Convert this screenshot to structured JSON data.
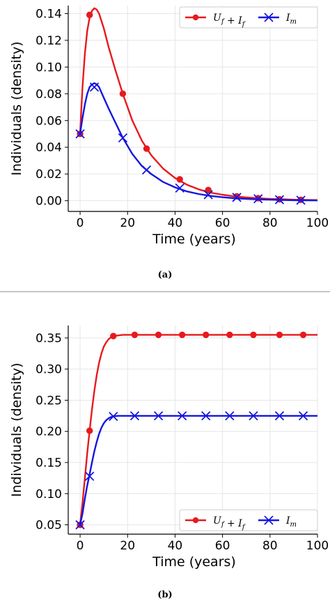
{
  "chart_data": [
    {
      "type": "line",
      "panel_label": "(a)",
      "xlabel": "Time (years)",
      "ylabel": "Individuals (density)",
      "xlim": [
        -5,
        100
      ],
      "ylim": [
        -0.008,
        0.146
      ],
      "xticks": [
        0,
        20,
        40,
        60,
        80,
        100
      ],
      "xtick_labels": [
        "0",
        "20",
        "40",
        "60",
        "80",
        "100"
      ],
      "yticks": [
        0.0,
        0.02,
        0.04,
        0.06,
        0.08,
        0.1,
        0.12,
        0.14
      ],
      "ytick_labels": [
        "0.00",
        "0.02",
        "0.04",
        "0.06",
        "0.08",
        "0.10",
        "0.12",
        "0.14"
      ],
      "grid": true,
      "legend_position": "top-right",
      "series": [
        {
          "name": "U_f + I_f",
          "color": "#e8191c",
          "marker": "circle",
          "x": [
            0,
            1,
            2,
            3,
            4,
            5,
            6,
            7,
            8,
            10,
            12,
            15,
            18,
            22,
            26,
            30,
            35,
            40,
            45,
            50,
            55,
            60,
            65,
            70,
            75,
            80,
            85,
            90,
            95,
            100
          ],
          "values": [
            0.05,
            0.085,
            0.11,
            0.127,
            0.137,
            0.142,
            0.144,
            0.143,
            0.14,
            0.129,
            0.115,
            0.097,
            0.08,
            0.06,
            0.045,
            0.034,
            0.024,
            0.017,
            0.012,
            0.0085,
            0.006,
            0.0045,
            0.0033,
            0.0025,
            0.0019,
            0.0014,
            0.0011,
            0.0008,
            0.0006,
            0.0005
          ],
          "marker_x": [
            0,
            4,
            18,
            28,
            42,
            54,
            66,
            75,
            84,
            93
          ],
          "marker_values": [
            0.05,
            0.139,
            0.08,
            0.039,
            0.016,
            0.008,
            0.0033,
            0.0019,
            0.0011,
            0.0007
          ]
        },
        {
          "name": "I_m",
          "color": "#1416e0",
          "marker": "x",
          "x": [
            0,
            1,
            2,
            3,
            4,
            5,
            6,
            7,
            8,
            10,
            12,
            15,
            18,
            22,
            26,
            30,
            35,
            40,
            45,
            50,
            55,
            60,
            65,
            70,
            75,
            80,
            85,
            90,
            95,
            100
          ],
          "values": [
            0.05,
            0.062,
            0.072,
            0.08,
            0.085,
            0.087,
            0.088,
            0.087,
            0.085,
            0.077,
            0.069,
            0.058,
            0.047,
            0.035,
            0.026,
            0.02,
            0.014,
            0.01,
            0.007,
            0.005,
            0.0036,
            0.0026,
            0.0019,
            0.0014,
            0.001,
            0.0008,
            0.0006,
            0.0004,
            0.0003,
            0.0002
          ],
          "marker_x": [
            0,
            6,
            18,
            28,
            42,
            54,
            66,
            75,
            84,
            93
          ],
          "marker_values": [
            0.05,
            0.085,
            0.047,
            0.023,
            0.0095,
            0.0045,
            0.0025,
            0.0015,
            0.0008,
            0.0004
          ]
        }
      ]
    },
    {
      "type": "line",
      "panel_label": "(b)",
      "xlabel": "Time (years)",
      "ylabel": "Individuals (density)",
      "xlim": [
        -5,
        100
      ],
      "ylim": [
        0.035,
        0.37
      ],
      "xticks": [
        0,
        20,
        40,
        60,
        80,
        100
      ],
      "xtick_labels": [
        "0",
        "20",
        "40",
        "60",
        "80",
        "100"
      ],
      "yticks": [
        0.05,
        0.1,
        0.15,
        0.2,
        0.25,
        0.3,
        0.35
      ],
      "ytick_labels": [
        "0.05",
        "0.10",
        "0.15",
        "0.20",
        "0.25",
        "0.30",
        "0.35"
      ],
      "grid": true,
      "legend_position": "lower-right",
      "series": [
        {
          "name": "U_f + I_f",
          "color": "#e8191c",
          "marker": "circle",
          "x": [
            0,
            1,
            2,
            3,
            4,
            5,
            6,
            7,
            8,
            9,
            10,
            11,
            12,
            13,
            14,
            16,
            18,
            20,
            25,
            30,
            40,
            50,
            60,
            70,
            80,
            90,
            100
          ],
          "values": [
            0.05,
            0.085,
            0.125,
            0.165,
            0.201,
            0.235,
            0.265,
            0.29,
            0.31,
            0.325,
            0.336,
            0.343,
            0.348,
            0.351,
            0.353,
            0.354,
            0.355,
            0.355,
            0.355,
            0.355,
            0.355,
            0.355,
            0.355,
            0.355,
            0.355,
            0.355,
            0.355
          ],
          "marker_x": [
            0,
            4,
            14,
            23,
            33,
            43,
            53,
            63,
            73,
            84,
            94
          ],
          "marker_values": [
            0.05,
            0.201,
            0.353,
            0.355,
            0.355,
            0.355,
            0.355,
            0.355,
            0.355,
            0.355,
            0.355
          ]
        },
        {
          "name": "I_m",
          "color": "#1416e0",
          "marker": "x",
          "x": [
            0,
            1,
            2,
            3,
            4,
            5,
            6,
            7,
            8,
            9,
            10,
            11,
            12,
            13,
            14,
            16,
            18,
            20,
            25,
            30,
            40,
            50,
            60,
            70,
            80,
            90,
            100
          ],
          "values": [
            0.05,
            0.068,
            0.092,
            0.113,
            0.131,
            0.15,
            0.168,
            0.183,
            0.196,
            0.206,
            0.213,
            0.218,
            0.221,
            0.223,
            0.224,
            0.225,
            0.225,
            0.225,
            0.225,
            0.225,
            0.225,
            0.225,
            0.225,
            0.225,
            0.225,
            0.225,
            0.225
          ],
          "marker_x": [
            0,
            4,
            14,
            23,
            33,
            43,
            53,
            63,
            73,
            84,
            94
          ],
          "marker_values": [
            0.05,
            0.128,
            0.224,
            0.225,
            0.225,
            0.225,
            0.225,
            0.225,
            0.225,
            0.225,
            0.225
          ]
        }
      ]
    }
  ]
}
